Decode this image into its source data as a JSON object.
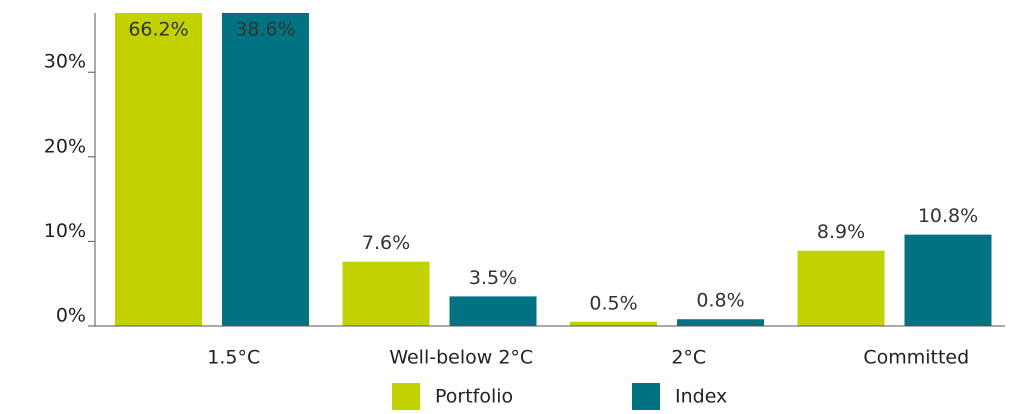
{
  "chart_data": {
    "type": "bar",
    "categories": [
      "1.5°C",
      "Well-below 2°C",
      "2°C",
      "Committed"
    ],
    "series": [
      {
        "name": "Portfolio",
        "color": "#c2d100",
        "values": [
          66.2,
          7.6,
          0.5,
          8.9
        ],
        "value_labels": [
          "66.2%",
          "7.6%",
          "0.5%",
          "8.9%"
        ]
      },
      {
        "name": "Index",
        "color": "#007282",
        "values": [
          38.6,
          3.5,
          0.8,
          10.8
        ],
        "value_labels": [
          "38.6%",
          "3.5%",
          "0.8%",
          "10.8%"
        ]
      }
    ],
    "ylim": [
      0,
      37
    ],
    "yticks": [
      {
        "value": 0,
        "label": "0%"
      },
      {
        "value": 10,
        "label": "10%"
      },
      {
        "value": 20,
        "label": "20%"
      },
      {
        "value": 30,
        "label": "30%"
      }
    ],
    "legend": "bottom"
  }
}
